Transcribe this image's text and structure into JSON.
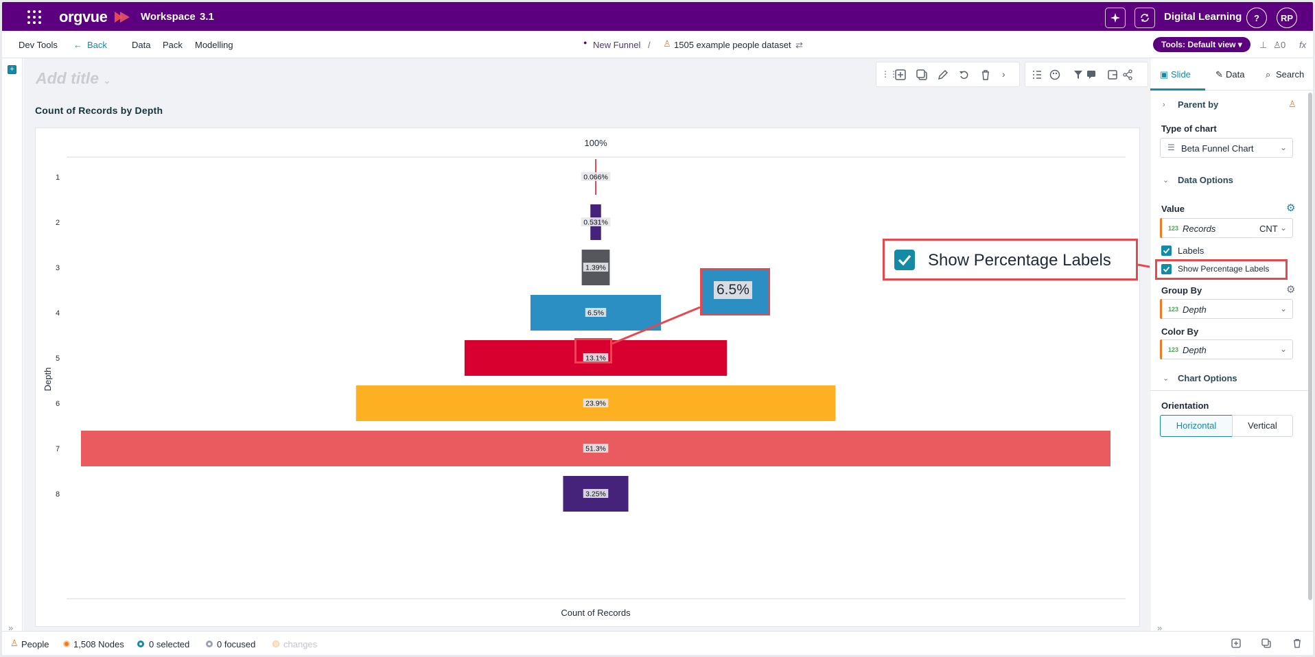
{
  "topbar": {
    "logo": "orgvue",
    "workspace": "Workspace",
    "version": "3.1",
    "org": "Digital Learning",
    "help": "?",
    "avatar": "RP",
    "bg": "#5c0080"
  },
  "nav": {
    "dev_tools": "Dev Tools",
    "back": "Back",
    "items": [
      "Data",
      "Pack",
      "Modelling"
    ],
    "funnel": "New Funnel",
    "sep": "/",
    "dataset": "1505 example people dataset",
    "tools": "Tools: Default view",
    "count": "0",
    "fx": "fx"
  },
  "canvas": {
    "add_title": "Add title",
    "chart_title": "Count of Records by Depth"
  },
  "chart_data": {
    "type": "bar",
    "subtype": "funnel",
    "top_label": "100%",
    "ylabel": "Depth",
    "xlabel": "Count of Records",
    "categories": [
      "1",
      "2",
      "3",
      "4",
      "5",
      "6",
      "7",
      "8"
    ],
    "values": [
      1,
      8,
      21,
      98,
      197,
      360,
      773,
      49
    ],
    "percent_labels": [
      "0.066%",
      "0.531%",
      "1.39%",
      "6.5%",
      "13.1%",
      "23.9%",
      "51.3%",
      "3.25%"
    ],
    "colors": [
      "#e8474d",
      "#46237a",
      "#55575d",
      "#2b8fc4",
      "#d8002f",
      "#fdb022",
      "#ea5b5f",
      "#46237a"
    ]
  },
  "callouts": {
    "big_label": "Show Percentage Labels",
    "value_label": "6.5%"
  },
  "panel": {
    "tabs": [
      "Slide",
      "Data",
      "Search"
    ],
    "parent_by": "Parent by",
    "type_of_chart": "Type of chart",
    "chart_type_value": "Beta Funnel Chart",
    "data_options": "Data Options",
    "value": "Value",
    "value_field": "Records",
    "value_agg": "CNT",
    "labels": "Labels",
    "show_pct": "Show Percentage Labels",
    "group_by": "Group By",
    "group_field": "Depth",
    "color_by": "Color By",
    "color_field": "Depth",
    "chart_options": "Chart Options",
    "orientation": "Orientation",
    "horizontal": "Horizontal",
    "vertical": "Vertical",
    "num_tag": "123"
  },
  "bottom": {
    "people": "People",
    "nodes": "1,508 Nodes",
    "selected": "0 selected",
    "focused": "0 focused",
    "changes": "changes"
  }
}
